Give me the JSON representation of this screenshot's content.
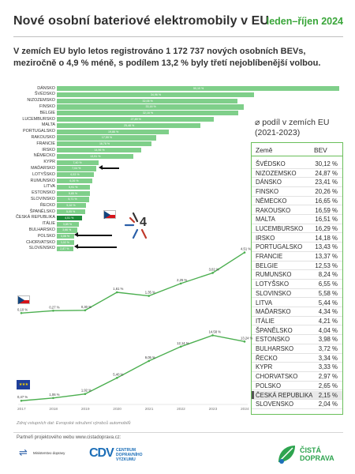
{
  "header": {
    "title": "Nové osobní bateriové elektromobily v EU",
    "period": "leden–říjen 2024"
  },
  "lead_text": "V zemích EU bylo letos registrováno 1 172 737 nových osobních BEVs, meziročně o 4,9 % méně, s podílem 13,2 % byly třetí nejoblíbenější volbou.",
  "share": {
    "title_line1": "⌀ podíl v zemích EU",
    "title_line2": "(2021-2023)",
    "col_country": "Země",
    "col_value": "BEV",
    "highlight": "ČESKÁ REPUBLIKA"
  },
  "chart_data": [
    {
      "type": "bar",
      "title": "",
      "orientation": "horizontal",
      "categories": [
        "DÁNSKO",
        "ŠVÉDSKO",
        "NIZOZEMSKO",
        "FINSKO",
        "BELGIE",
        "LUCEMBURSKO",
        "MALTA",
        "PORTUGALSKO",
        "RAKOUSKO",
        "FRANCIE",
        "IRSKO",
        "NĚMECKO",
        "KYPR",
        "MAĎARSKO",
        "LOTYŠSKO",
        "RUMUNSKO",
        "LITVA",
        "ESTONSKO",
        "SLOVINSKO",
        "ŘECKO",
        "ŠPANĚLSKO",
        "ČESKÁ REPUBLIKA",
        "ITÁLIE",
        "BULHARSKO",
        "POLSKO",
        "CHORVATSKO",
        "SLOVENSKO"
      ],
      "values_label": [
        "50,10 %",
        "34,96 %",
        "32,06 %",
        "33,16 %",
        "32,16 %",
        "27,89 %",
        "25,48 %",
        "19,86 %",
        "17,59 %",
        "16,78 %",
        "14,96 %",
        "13,51 %",
        "7,40 %",
        "7,04 %",
        "6,53 %",
        "6,26 %",
        "5,91 %",
        "5,85 %",
        "5,71 %",
        "5,16 %",
        "5,05 %",
        "4,51 %",
        "3,89 %",
        "3,66 %",
        "3,06 %",
        "3,02 %",
        "2,87 %"
      ],
      "values": [
        50.1,
        34.96,
        32.06,
        33.16,
        32.16,
        27.89,
        25.48,
        19.86,
        17.59,
        16.78,
        14.96,
        13.51,
        7.4,
        7.04,
        6.53,
        6.26,
        5.91,
        5.85,
        5.71,
        5.16,
        5.05,
        4.51,
        3.89,
        3.66,
        3.06,
        3.02,
        2.87
      ],
      "unit": "%",
      "highlight": "ČESKÁ REPUBLIKA",
      "arrows_on": [
        "MAĎARSKO",
        "POLSKO",
        "SLOVENSKO"
      ]
    },
    {
      "type": "table",
      "columns": [
        "Země",
        "BEV"
      ],
      "rows": [
        [
          "ŠVÉDSKO",
          "30,12 %"
        ],
        [
          "NIZOZEMSKO",
          "24,87 %"
        ],
        [
          "DÁNSKO",
          "23,41 %"
        ],
        [
          "FINSKO",
          "20,26 %"
        ],
        [
          "NĚMECKO",
          "16,65 %"
        ],
        [
          "RAKOUSKO",
          "16,59 %"
        ],
        [
          "MALTA",
          "16,51 %"
        ],
        [
          "LUCEMBURSKO",
          "16,29 %"
        ],
        [
          "IRSKO",
          "14,18 %"
        ],
        [
          "PORTUGALSKO",
          "13,43 %"
        ],
        [
          "FRANCIE",
          "13,37 %"
        ],
        [
          "BELGIE",
          "12,53 %"
        ],
        [
          "RUMUNSKO",
          "8,24 %"
        ],
        [
          "LOTYŠSKO",
          "6,55 %"
        ],
        [
          "SLOVINSKO",
          "5,58 %"
        ],
        [
          "LITVA",
          "5,44 %"
        ],
        [
          "MAĎARSKO",
          "4,34 %"
        ],
        [
          "ITÁLIE",
          "4,21 %"
        ],
        [
          "ŠPANĚLSKO",
          "4,04 %"
        ],
        [
          "ESTONSKO",
          "3,98 %"
        ],
        [
          "BULHARSKO",
          "3,72 %"
        ],
        [
          "ŘECKO",
          "3,34 %"
        ],
        [
          "KYPR",
          "3,33 %"
        ],
        [
          "CHORVATSKO",
          "2,97 %"
        ],
        [
          "POLSKO",
          "2,65 %"
        ],
        [
          "ČESKÁ REPUBLIKA",
          "2,15 %"
        ],
        [
          "SLOVENSKO",
          "2,04 %"
        ]
      ]
    },
    {
      "type": "line",
      "series_label": "ČR",
      "x": [
        "2017",
        "2018",
        "2019",
        "2020",
        "2021",
        "2022",
        "2023",
        "2024"
      ],
      "values": [
        0.1,
        0.27,
        0.3,
        1.61,
        1.35,
        2.25,
        3.02,
        4.51
      ],
      "value_labels": [
        "0,10 %",
        "0,27 %",
        "0,30 %",
        "1,61 %",
        "1,35 %",
        "2,25 %",
        "3,02 %",
        "4,51 %"
      ]
    },
    {
      "type": "line",
      "series_label": "EU",
      "x": [
        "2017",
        "2018",
        "2019",
        "2020",
        "2021",
        "2022",
        "2023",
        "2024"
      ],
      "values": [
        0.47,
        1.06,
        1.92,
        5.4,
        9.05,
        12.14,
        14.58,
        13.24
      ],
      "value_labels": [
        "0,47 %",
        "1,06 %",
        "1,92 %",
        "5,40 %",
        "9,05 %",
        "12,14 %",
        "14,58 %",
        "13,24 %"
      ]
    }
  ],
  "footer": {
    "source": "Zdroj vstupních dat: Evropské sdružení výrobců automobilů",
    "partners": "Partneři projektového webu www.cistadoprava.cz:",
    "logo_md": "Ministerstvo dopravy",
    "logo_cdv_mark": "CDV",
    "logo_cdv_text": "CENTRUM DOPRAVNÍHO VÝZKUMU",
    "logo_cd": "ČISTÁ DOPRAVA"
  },
  "colors": {
    "accent": "#3aa63a",
    "bar": "#7fcf8a",
    "bar_highlight": "#1f8a3a",
    "line": "#4caf50"
  }
}
